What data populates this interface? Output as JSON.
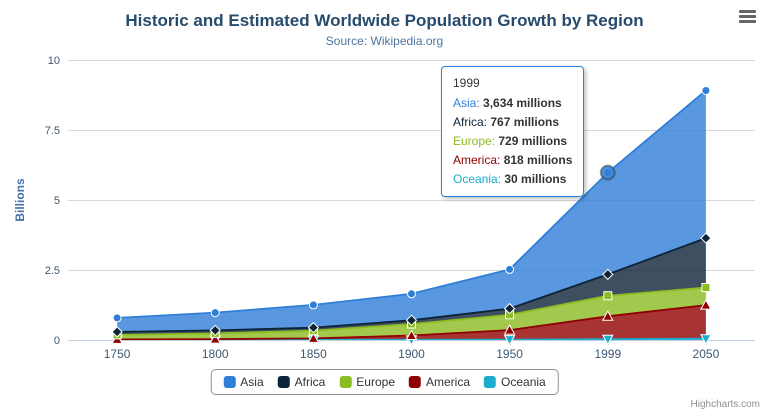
{
  "chart": {
    "title": "Historic and Estimated Worldwide Population Growth by Region",
    "subtitle": "Source: Wikipedia.org",
    "credits": "Highcharts.com"
  },
  "chart_data": {
    "type": "area",
    "stacking": "normal",
    "title": "Historic and Estimated Worldwide Population Growth by Region",
    "subtitle": "Source: Wikipedia.org",
    "xlabel": "",
    "ylabel": "Billions",
    "value_unit": "millions",
    "categories": [
      "1750",
      "1800",
      "1850",
      "1900",
      "1950",
      "1999",
      "2050"
    ],
    "ylim": [
      0,
      10
    ],
    "yticks": [
      0,
      2.5,
      5,
      7.5,
      10
    ],
    "ytick_labels": [
      "0",
      "2.5",
      "5",
      "7.5",
      "10"
    ],
    "grid": true,
    "legend_position": "bottom",
    "series": [
      {
        "name": "Asia",
        "color": "#2f7ed8",
        "marker": "circle",
        "values_millions": [
          502,
          635,
          809,
          947,
          1402,
          3634,
          5268
        ]
      },
      {
        "name": "Africa",
        "color": "#0d233a",
        "marker": "diamond",
        "values_millions": [
          106,
          107,
          111,
          133,
          221,
          767,
          1766
        ]
      },
      {
        "name": "Europe",
        "color": "#8bbc21",
        "marker": "square",
        "values_millions": [
          163,
          203,
          276,
          408,
          547,
          729,
          628
        ]
      },
      {
        "name": "America",
        "color": "#910000",
        "marker": "triangle",
        "values_millions": [
          18,
          31,
          54,
          156,
          339,
          818,
          1201
        ]
      },
      {
        "name": "Oceania",
        "color": "#1aadce",
        "marker": "triangle-down",
        "values_millions": [
          2,
          2,
          2,
          6,
          13,
          30,
          46
        ]
      }
    ],
    "stack_order_bottom_to_top": [
      "Oceania",
      "America",
      "Europe",
      "Africa",
      "Asia"
    ]
  },
  "tooltip": {
    "header": "1999",
    "hover_point": {
      "series": "Asia",
      "category": "1999"
    },
    "rows": [
      {
        "name": "Asia",
        "value": "3,634 millions",
        "color": "#2f7ed8"
      },
      {
        "name": "Africa",
        "value": "767 millions",
        "color": "#0d233a"
      },
      {
        "name": "Europe",
        "value": "729 millions",
        "color": "#8bbc21"
      },
      {
        "name": "America",
        "value": "818 millions",
        "color": "#910000"
      },
      {
        "name": "Oceania",
        "value": "30 millions",
        "color": "#1aadce"
      }
    ]
  },
  "legend": {
    "items": [
      "Asia",
      "Africa",
      "Europe",
      "America",
      "Oceania"
    ]
  },
  "colors": {
    "title": "#274b6d",
    "subtitle": "#4d759e",
    "axis_label": "#3e576f",
    "axis_title": "#4572a7",
    "gridline": "#d8d8d8",
    "axis_line": "#c0d0e0"
  }
}
